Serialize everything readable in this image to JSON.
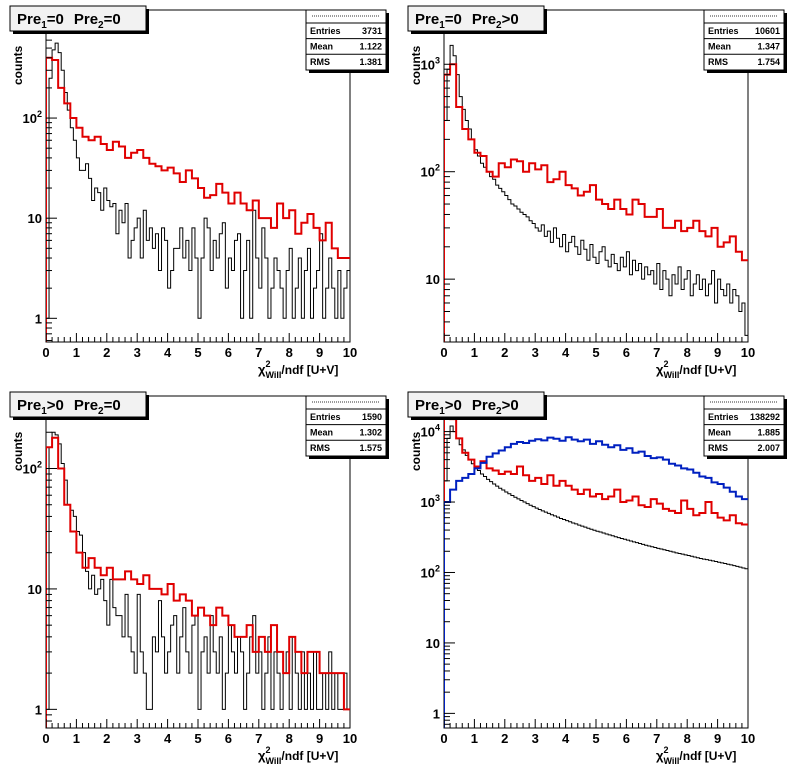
{
  "charts": [
    {
      "title_parts": [
        [
          "Pre",
          "1",
          "=0"
        ],
        [
          "Pre",
          "2",
          "=0"
        ]
      ],
      "stats": {
        "entries": "3731",
        "mean": "1.122",
        "rms": "1.381"
      },
      "ylabel": "counts",
      "xlabel_main": "χ",
      "xlabel_sup": "2",
      "xlabel_sub": "Will",
      "xlabel_rest": "/ndf [U+V]",
      "stat_labels": [
        "Entries",
        "Mean",
        "RMS"
      ],
      "xlim": [
        0,
        10
      ],
      "ylim_log": [
        0.58,
        1200
      ],
      "xticks": [
        "0",
        "1",
        "2",
        "3",
        "4",
        "5",
        "6",
        "7",
        "8",
        "9",
        "10"
      ],
      "yticks": [
        {
          "v": 1,
          "label": "1"
        },
        {
          "v": 10,
          "label": "10"
        },
        {
          "v": 100,
          "label": "10",
          "exp": "2"
        },
        {
          "v": 1000,
          "label": "10",
          "exp": "3"
        }
      ],
      "series": [
        {
          "color": "#000000",
          "width": 1,
          "start": 0,
          "binw": 0.1,
          "values": [
            1,
            250,
            480,
            560,
            450,
            300,
            180,
            120,
            80,
            60,
            40,
            30,
            30,
            35,
            25,
            15,
            20,
            18,
            12,
            20,
            15,
            13,
            14,
            7,
            12,
            9,
            14,
            4,
            6,
            8,
            10,
            4,
            12,
            6,
            8,
            5,
            7,
            3,
            8,
            6,
            2,
            3,
            5,
            5,
            8,
            4,
            6,
            3,
            8,
            4,
            1,
            4,
            10,
            8,
            3,
            6,
            4,
            7,
            9,
            2,
            4,
            3,
            6,
            7,
            1,
            3,
            6,
            1,
            12,
            4,
            2,
            8,
            4,
            1,
            2,
            4,
            3,
            2,
            1,
            3,
            5,
            1,
            2,
            4,
            1,
            3,
            5,
            1,
            2,
            3,
            7,
            1,
            2,
            4,
            2,
            1,
            3,
            1,
            2,
            3
          ]
        },
        {
          "color": "#e00000",
          "width": 2,
          "start": 0,
          "binw": 0.2,
          "values": [
            400,
            380,
            200,
            140,
            100,
            80,
            65,
            60,
            65,
            55,
            48,
            58,
            52,
            40,
            45,
            48,
            40,
            35,
            33,
            30,
            32,
            28,
            23,
            30,
            25,
            20,
            16,
            17,
            22,
            18,
            14,
            18,
            14,
            12,
            15,
            10,
            10,
            8,
            14,
            10,
            12,
            7,
            9,
            11,
            8,
            6,
            9,
            5,
            4,
            4
          ]
        }
      ]
    },
    {
      "title_parts": [
        [
          "Pre",
          "1",
          "=0"
        ],
        [
          "Pre",
          "2",
          ">0"
        ]
      ],
      "stats": {
        "entries": "10601",
        "mean": "1.347",
        "rms": "1.754"
      },
      "ylabel": "counts",
      "xlabel_main": "χ",
      "xlabel_sup": "2",
      "xlabel_sub": "Will",
      "xlabel_rest": "/ndf [U+V]",
      "stat_labels": [
        "Entries",
        "Mean",
        "RMS"
      ],
      "xlim": [
        0,
        10
      ],
      "ylim_log": [
        2.6,
        3200
      ],
      "xticks": [
        "0",
        "1",
        "2",
        "3",
        "4",
        "5",
        "6",
        "7",
        "8",
        "9",
        "10"
      ],
      "yticks": [
        {
          "v": 10,
          "label": "10"
        },
        {
          "v": 100,
          "label": "10",
          "exp": "2"
        },
        {
          "v": 1000,
          "label": "10",
          "exp": "3"
        }
      ],
      "series": [
        {
          "color": "#000000",
          "width": 1,
          "start": 0,
          "binw": 0.1,
          "values": [
            300,
            900,
            1500,
            1200,
            800,
            500,
            380,
            300,
            250,
            200,
            160,
            140,
            120,
            110,
            100,
            90,
            85,
            75,
            70,
            65,
            60,
            55,
            50,
            48,
            45,
            42,
            40,
            38,
            35,
            33,
            30,
            28,
            32,
            25,
            28,
            22,
            30,
            24,
            20,
            26,
            18,
            22,
            25,
            20,
            17,
            23,
            19,
            15,
            21,
            16,
            14,
            18,
            20,
            15,
            13,
            17,
            14,
            12,
            16,
            13,
            18,
            11,
            15,
            12,
            14,
            10,
            13,
            11,
            12,
            9,
            14,
            8,
            12,
            10,
            7,
            11,
            9,
            13,
            8,
            10,
            12,
            7,
            9,
            11,
            8,
            10,
            7,
            9,
            12,
            6,
            10,
            8,
            7,
            9,
            6,
            8,
            7,
            5,
            6,
            3
          ]
        },
        {
          "color": "#e00000",
          "width": 2,
          "start": 0,
          "binw": 0.2,
          "values": [
            800,
            1000,
            400,
            250,
            200,
            150,
            140,
            100,
            90,
            120,
            110,
            130,
            125,
            100,
            120,
            105,
            115,
            80,
            85,
            100,
            75,
            70,
            60,
            65,
            75,
            55,
            50,
            45,
            55,
            45,
            40,
            55,
            50,
            38,
            38,
            45,
            30,
            30,
            35,
            28,
            30,
            35,
            28,
            25,
            30,
            20,
            22,
            25,
            18,
            15
          ]
        }
      ]
    },
    {
      "title_parts": [
        [
          "Pre",
          "1",
          ">0"
        ],
        [
          "Pre",
          "2",
          "=0"
        ]
      ],
      "stats": {
        "entries": "1590",
        "mean": "1.302",
        "rms": "1.575"
      },
      "ylabel": "counts",
      "xlabel_main": "χ",
      "xlabel_sup": "2",
      "xlabel_sub": "Will",
      "xlabel_rest": "/ndf [U+V]",
      "stat_labels": [
        "Entries",
        "Mean",
        "RMS"
      ],
      "xlim": [
        0,
        10
      ],
      "ylim_log": [
        0.7,
        400
      ],
      "xticks": [
        "0",
        "1",
        "2",
        "3",
        "4",
        "5",
        "6",
        "7",
        "8",
        "9",
        "10"
      ],
      "yticks": [
        {
          "v": 1,
          "label": "1"
        },
        {
          "v": 10,
          "label": "10"
        },
        {
          "v": 100,
          "label": "10",
          "exp": "2"
        }
      ],
      "series": [
        {
          "color": "#000000",
          "width": 1,
          "start": 0,
          "binw": 0.1,
          "values": [
            1,
            150,
            200,
            190,
            160,
            110,
            80,
            50,
            45,
            40,
            30,
            28,
            20,
            14,
            10,
            13,
            9,
            10,
            12,
            8,
            5,
            12,
            7,
            6,
            6,
            4,
            9,
            4,
            3,
            2,
            9,
            3,
            2,
            1,
            1,
            4,
            3,
            8,
            4,
            2,
            3,
            5,
            6,
            2,
            4,
            7,
            3,
            2,
            5,
            6,
            1,
            3,
            4,
            2,
            6,
            3,
            2,
            4,
            1,
            2,
            5,
            3,
            2,
            4,
            3,
            1,
            2,
            4,
            6,
            2,
            3,
            1,
            2,
            4,
            1,
            3,
            2,
            1,
            2,
            3,
            1,
            4,
            2,
            1,
            3,
            1,
            2,
            1,
            3,
            1,
            1,
            2,
            1,
            3,
            1,
            2,
            1,
            1,
            2,
            1
          ]
        },
        {
          "color": "#e00000",
          "width": 2,
          "start": 0,
          "binw": 0.2,
          "values": [
            150,
            180,
            100,
            50,
            30,
            20,
            15,
            18,
            15,
            13,
            15,
            12,
            12,
            14,
            12,
            11,
            13,
            10,
            10,
            9,
            11,
            8,
            9,
            8,
            6,
            7,
            6,
            5,
            7,
            6,
            5,
            4,
            4,
            5,
            3,
            4,
            3,
            5,
            3,
            2,
            4,
            3,
            2,
            3,
            3,
            2,
            2,
            2,
            2,
            1
          ]
        }
      ]
    },
    {
      "title_parts": [
        [
          "Pre",
          "1",
          ">0"
        ],
        [
          "Pre",
          "2",
          ">0"
        ]
      ],
      "stats": {
        "entries": "138292",
        "mean": "1.885",
        "rms": "2.007"
      },
      "ylabel": "counts",
      "xlabel_main": "χ",
      "xlabel_sup": "2",
      "xlabel_sub": "Will",
      "xlabel_rest": "/ndf [U+V]",
      "stat_labels": [
        "Entries",
        "Mean",
        "RMS"
      ],
      "xlim": [
        0,
        10
      ],
      "ylim_log": [
        0.62,
        32000
      ],
      "xticks": [
        "0",
        "1",
        "2",
        "3",
        "4",
        "5",
        "6",
        "7",
        "8",
        "9",
        "10"
      ],
      "yticks": [
        {
          "v": 1,
          "label": "1"
        },
        {
          "v": 10,
          "label": "10"
        },
        {
          "v": 100,
          "label": "10",
          "exp": "2"
        },
        {
          "v": 1000,
          "label": "10",
          "exp": "3"
        },
        {
          "v": 10000,
          "label": "10",
          "exp": "4"
        }
      ],
      "series": [
        {
          "color": "#000000",
          "width": 1,
          "start": 0,
          "binw": 0.1,
          "values": [
            2000,
            8000,
            12000,
            10000,
            8000,
            6500,
            5500,
            4600,
            4000,
            3500,
            3100,
            2800,
            2500,
            2300,
            2100,
            1950,
            1800,
            1680,
            1570,
            1480,
            1390,
            1310,
            1240,
            1170,
            1110,
            1050,
            1000,
            950,
            900,
            860,
            820,
            785,
            750,
            720,
            690,
            660,
            635,
            610,
            585,
            565,
            545,
            525,
            505,
            490,
            470,
            455,
            440,
            425,
            410,
            398,
            385,
            375,
            363,
            352,
            342,
            332,
            322,
            313,
            304,
            296,
            288,
            280,
            272,
            265,
            258,
            251,
            244,
            238,
            232,
            226,
            220,
            215,
            210,
            205,
            200,
            195,
            190,
            186,
            182,
            178,
            174,
            170,
            166,
            162,
            158,
            155,
            152,
            149,
            146,
            143,
            140,
            137,
            134,
            131,
            128,
            125,
            122,
            119,
            116,
            113
          ]
        },
        {
          "color": "#e00000",
          "width": 2,
          "start": 0,
          "binw": 0.2,
          "values": [
            20000,
            15000,
            8000,
            5000,
            4000,
            3200,
            3800,
            3000,
            2800,
            2500,
            2700,
            2500,
            3200,
            2400,
            2000,
            2200,
            1800,
            2400,
            1700,
            2000,
            1700,
            1500,
            1300,
            1500,
            1200,
            1300,
            1100,
            1200,
            1500,
            1000,
            1050,
            1200,
            900,
            850,
            1100,
            950,
            800,
            750,
            700,
            1050,
            800,
            650,
            700,
            1000,
            700,
            600,
            550,
            650,
            500,
            480
          ]
        },
        {
          "color": "#0020c0",
          "width": 2,
          "start": 0,
          "binw": 0.2,
          "values": [
            1000,
            1500,
            2000,
            2200,
            2500,
            3000,
            3600,
            4400,
            4900,
            5400,
            6000,
            6700,
            7100,
            6900,
            7400,
            7800,
            7500,
            8200,
            7900,
            7400,
            8300,
            7700,
            7300,
            7700,
            6700,
            7300,
            6500,
            6000,
            6400,
            5500,
            5800,
            5000,
            5200,
            4500,
            4200,
            4300,
            4000,
            3500,
            3300,
            3000,
            2900,
            2600,
            2300,
            2200,
            1900,
            1800,
            1600,
            1400,
            1200,
            1100
          ]
        }
      ]
    }
  ]
}
